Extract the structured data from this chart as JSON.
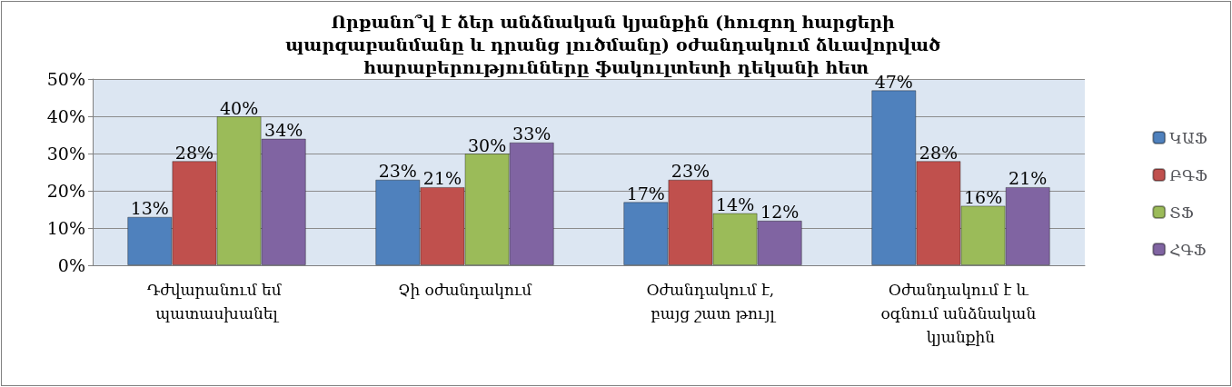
{
  "chart_data": {
    "type": "bar",
    "title": "Որքանո՞վ է ձեր անձնական կյանքին (հուզող հարցերի պարզաբանմանը և դրանց լուծմանը) օժանդակում ձևավորված հարաբերությունները ֆակուլտետի դեկանի հետ",
    "categories": [
      "Դժվարանում եմ պատասխանել",
      "Չի օժանդակում",
      "Օժանդակում է, բայց շատ թույլ",
      "Օժանդակում է և օգնում անձնական կյանքին"
    ],
    "series": [
      {
        "name": "ԿԱՖ",
        "color": "#4f81bd",
        "values": [
          13,
          23,
          17,
          47
        ],
        "value_labels": [
          "13%",
          "23%",
          "17%",
          "47%"
        ]
      },
      {
        "name": "ԲԳՖ",
        "color": "#c0504d",
        "values": [
          28,
          21,
          23,
          28
        ],
        "value_labels": [
          "28%",
          "21%",
          "23%",
          "28%"
        ]
      },
      {
        "name": "ՏՖ",
        "color": "#9bbb59",
        "values": [
          40,
          30,
          14,
          16
        ],
        "value_labels": [
          "40%",
          "30%",
          "14%",
          "16%"
        ]
      },
      {
        "name": "ՀԳՖ",
        "color": "#8064a2",
        "values": [
          34,
          33,
          12,
          21
        ],
        "value_labels": [
          "34%",
          "33%",
          "12%",
          "21%"
        ]
      }
    ],
    "ylim": [
      0,
      50
    ],
    "yticks": [
      {
        "value": 0,
        "label": "0%"
      },
      {
        "value": 10,
        "label": "10%"
      },
      {
        "value": 20,
        "label": "20%"
      },
      {
        "value": 30,
        "label": "30%"
      },
      {
        "value": 40,
        "label": "40%"
      },
      {
        "value": 50,
        "label": "50%"
      }
    ],
    "grid": "y",
    "legend": "right"
  }
}
